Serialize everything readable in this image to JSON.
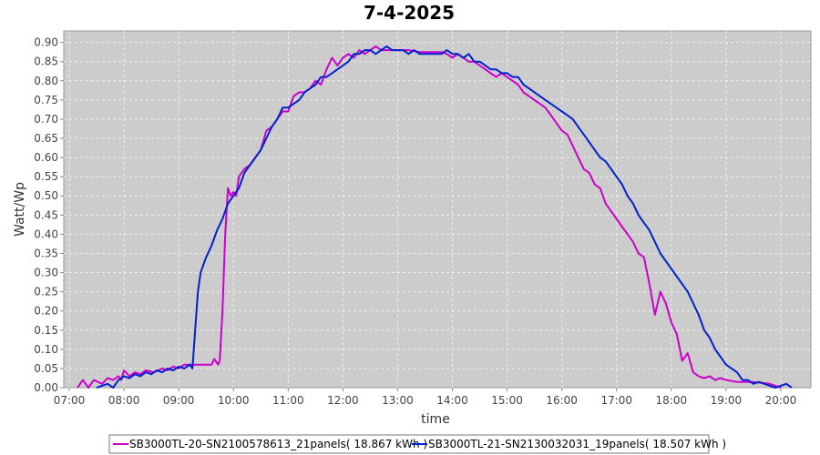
{
  "chart_data": {
    "type": "line",
    "title": "7-4-2025",
    "xlabel": "time",
    "ylabel": "Watt/Wp",
    "x_ticks": [
      "07:00",
      "08:00",
      "09:00",
      "10:00",
      "11:00",
      "12:00",
      "13:00",
      "14:00",
      "15:00",
      "16:00",
      "17:00",
      "18:00",
      "19:00",
      "20:00"
    ],
    "y_ticks": [
      "0.00",
      "0.05",
      "0.10",
      "0.15",
      "0.20",
      "0.25",
      "0.30",
      "0.35",
      "0.40",
      "0.45",
      "0.50",
      "0.55",
      "0.60",
      "0.65",
      "0.70",
      "0.75",
      "0.80",
      "0.85",
      "0.90"
    ],
    "xlim_hours": [
      6.9,
      20.55
    ],
    "ylim": [
      0,
      0.93
    ],
    "grid": true,
    "legend_position": "bottom",
    "series": [
      {
        "name": "SB3000TL-20-SN2100578613_21panels( 18.867 kWh )",
        "color": "#cc00cc",
        "points": [
          [
            7.15,
            0.0
          ],
          [
            7.25,
            0.02
          ],
          [
            7.35,
            0.0
          ],
          [
            7.45,
            0.02
          ],
          [
            7.6,
            0.01
          ],
          [
            7.7,
            0.025
          ],
          [
            7.8,
            0.02
          ],
          [
            7.9,
            0.03
          ],
          [
            7.95,
            0.02
          ],
          [
            8.0,
            0.045
          ],
          [
            8.1,
            0.03
          ],
          [
            8.2,
            0.04
          ],
          [
            8.3,
            0.035
          ],
          [
            8.4,
            0.045
          ],
          [
            8.55,
            0.04
          ],
          [
            8.7,
            0.05
          ],
          [
            8.8,
            0.045
          ],
          [
            8.9,
            0.055
          ],
          [
            9.0,
            0.05
          ],
          [
            9.1,
            0.06
          ],
          [
            9.25,
            0.06
          ],
          [
            9.4,
            0.06
          ],
          [
            9.5,
            0.06
          ],
          [
            9.55,
            0.06
          ],
          [
            9.6,
            0.06
          ],
          [
            9.65,
            0.075
          ],
          [
            9.72,
            0.06
          ],
          [
            9.75,
            0.07
          ],
          [
            9.8,
            0.2
          ],
          [
            9.85,
            0.4
          ],
          [
            9.9,
            0.52
          ],
          [
            9.95,
            0.5
          ],
          [
            10.0,
            0.51
          ],
          [
            10.05,
            0.5
          ],
          [
            10.1,
            0.55
          ],
          [
            10.2,
            0.57
          ],
          [
            10.3,
            0.58
          ],
          [
            10.4,
            0.6
          ],
          [
            10.5,
            0.62
          ],
          [
            10.6,
            0.67
          ],
          [
            10.7,
            0.68
          ],
          [
            10.8,
            0.7
          ],
          [
            10.9,
            0.72
          ],
          [
            11.0,
            0.72
          ],
          [
            11.1,
            0.76
          ],
          [
            11.2,
            0.77
          ],
          [
            11.3,
            0.77
          ],
          [
            11.4,
            0.78
          ],
          [
            11.5,
            0.8
          ],
          [
            11.6,
            0.79
          ],
          [
            11.7,
            0.83
          ],
          [
            11.8,
            0.86
          ],
          [
            11.9,
            0.84
          ],
          [
            12.0,
            0.86
          ],
          [
            12.1,
            0.87
          ],
          [
            12.2,
            0.86
          ],
          [
            12.3,
            0.88
          ],
          [
            12.4,
            0.87
          ],
          [
            12.5,
            0.88
          ],
          [
            12.6,
            0.89
          ],
          [
            12.7,
            0.88
          ],
          [
            12.8,
            0.88
          ],
          [
            13.0,
            0.88
          ],
          [
            13.2,
            0.88
          ],
          [
            13.4,
            0.875
          ],
          [
            13.6,
            0.875
          ],
          [
            13.8,
            0.875
          ],
          [
            13.9,
            0.87
          ],
          [
            14.0,
            0.86
          ],
          [
            14.1,
            0.87
          ],
          [
            14.2,
            0.86
          ],
          [
            14.3,
            0.85
          ],
          [
            14.4,
            0.85
          ],
          [
            14.5,
            0.84
          ],
          [
            14.6,
            0.83
          ],
          [
            14.7,
            0.82
          ],
          [
            14.8,
            0.81
          ],
          [
            14.9,
            0.82
          ],
          [
            15.0,
            0.81
          ],
          [
            15.1,
            0.8
          ],
          [
            15.2,
            0.79
          ],
          [
            15.3,
            0.77
          ],
          [
            15.4,
            0.76
          ],
          [
            15.5,
            0.75
          ],
          [
            15.6,
            0.74
          ],
          [
            15.7,
            0.73
          ],
          [
            15.8,
            0.71
          ],
          [
            15.9,
            0.69
          ],
          [
            16.0,
            0.67
          ],
          [
            16.1,
            0.66
          ],
          [
            16.2,
            0.63
          ],
          [
            16.3,
            0.6
          ],
          [
            16.4,
            0.57
          ],
          [
            16.5,
            0.56
          ],
          [
            16.6,
            0.53
          ],
          [
            16.7,
            0.52
          ],
          [
            16.8,
            0.48
          ],
          [
            16.9,
            0.46
          ],
          [
            17.0,
            0.44
          ],
          [
            17.1,
            0.42
          ],
          [
            17.2,
            0.4
          ],
          [
            17.3,
            0.38
          ],
          [
            17.4,
            0.35
          ],
          [
            17.5,
            0.34
          ],
          [
            17.6,
            0.27
          ],
          [
            17.7,
            0.19
          ],
          [
            17.8,
            0.25
          ],
          [
            17.9,
            0.22
          ],
          [
            18.0,
            0.17
          ],
          [
            18.1,
            0.14
          ],
          [
            18.2,
            0.07
          ],
          [
            18.3,
            0.09
          ],
          [
            18.4,
            0.04
          ],
          [
            18.5,
            0.03
          ],
          [
            18.6,
            0.025
          ],
          [
            18.7,
            0.03
          ],
          [
            18.8,
            0.02
          ],
          [
            18.9,
            0.025
          ],
          [
            19.0,
            0.02
          ],
          [
            19.2,
            0.015
          ],
          [
            19.5,
            0.015
          ],
          [
            19.8,
            0.01
          ],
          [
            20.0,
            0.0
          ]
        ]
      },
      {
        "name": "SB3000TL-21-SN2130032031_19panels( 18.507 kWh )",
        "color": "#0022cc",
        "points": [
          [
            7.5,
            0.0
          ],
          [
            7.7,
            0.01
          ],
          [
            7.8,
            0.0
          ],
          [
            7.9,
            0.02
          ],
          [
            8.0,
            0.03
          ],
          [
            8.1,
            0.025
          ],
          [
            8.2,
            0.035
          ],
          [
            8.3,
            0.03
          ],
          [
            8.4,
            0.04
          ],
          [
            8.5,
            0.035
          ],
          [
            8.6,
            0.045
          ],
          [
            8.7,
            0.04
          ],
          [
            8.8,
            0.05
          ],
          [
            8.9,
            0.045
          ],
          [
            9.0,
            0.055
          ],
          [
            9.1,
            0.05
          ],
          [
            9.2,
            0.06
          ],
          [
            9.25,
            0.05
          ],
          [
            9.3,
            0.15
          ],
          [
            9.35,
            0.25
          ],
          [
            9.4,
            0.3
          ],
          [
            9.5,
            0.34
          ],
          [
            9.6,
            0.37
          ],
          [
            9.7,
            0.41
          ],
          [
            9.8,
            0.44
          ],
          [
            9.9,
            0.48
          ],
          [
            10.0,
            0.5
          ],
          [
            10.1,
            0.52
          ],
          [
            10.2,
            0.56
          ],
          [
            10.3,
            0.58
          ],
          [
            10.4,
            0.6
          ],
          [
            10.5,
            0.62
          ],
          [
            10.6,
            0.65
          ],
          [
            10.7,
            0.68
          ],
          [
            10.8,
            0.7
          ],
          [
            10.9,
            0.73
          ],
          [
            11.0,
            0.73
          ],
          [
            11.1,
            0.74
          ],
          [
            11.2,
            0.75
          ],
          [
            11.3,
            0.77
          ],
          [
            11.4,
            0.78
          ],
          [
            11.5,
            0.79
          ],
          [
            11.6,
            0.81
          ],
          [
            11.7,
            0.81
          ],
          [
            11.8,
            0.82
          ],
          [
            11.9,
            0.83
          ],
          [
            12.0,
            0.84
          ],
          [
            12.1,
            0.85
          ],
          [
            12.2,
            0.87
          ],
          [
            12.3,
            0.87
          ],
          [
            12.4,
            0.88
          ],
          [
            12.5,
            0.88
          ],
          [
            12.6,
            0.87
          ],
          [
            12.7,
            0.88
          ],
          [
            12.8,
            0.89
          ],
          [
            12.9,
            0.88
          ],
          [
            13.0,
            0.88
          ],
          [
            13.1,
            0.88
          ],
          [
            13.2,
            0.87
          ],
          [
            13.3,
            0.88
          ],
          [
            13.4,
            0.87
          ],
          [
            13.6,
            0.87
          ],
          [
            13.8,
            0.87
          ],
          [
            13.9,
            0.88
          ],
          [
            14.0,
            0.87
          ],
          [
            14.1,
            0.87
          ],
          [
            14.2,
            0.86
          ],
          [
            14.3,
            0.87
          ],
          [
            14.4,
            0.85
          ],
          [
            14.5,
            0.85
          ],
          [
            14.6,
            0.84
          ],
          [
            14.7,
            0.83
          ],
          [
            14.8,
            0.83
          ],
          [
            14.9,
            0.82
          ],
          [
            15.0,
            0.82
          ],
          [
            15.1,
            0.81
          ],
          [
            15.2,
            0.81
          ],
          [
            15.3,
            0.79
          ],
          [
            15.4,
            0.78
          ],
          [
            15.5,
            0.77
          ],
          [
            15.6,
            0.76
          ],
          [
            15.7,
            0.75
          ],
          [
            15.8,
            0.74
          ],
          [
            15.9,
            0.73
          ],
          [
            16.0,
            0.72
          ],
          [
            16.1,
            0.71
          ],
          [
            16.2,
            0.7
          ],
          [
            16.3,
            0.68
          ],
          [
            16.4,
            0.66
          ],
          [
            16.5,
            0.64
          ],
          [
            16.6,
            0.62
          ],
          [
            16.7,
            0.6
          ],
          [
            16.8,
            0.59
          ],
          [
            16.9,
            0.57
          ],
          [
            17.0,
            0.55
          ],
          [
            17.1,
            0.53
          ],
          [
            17.2,
            0.5
          ],
          [
            17.3,
            0.48
          ],
          [
            17.4,
            0.45
          ],
          [
            17.5,
            0.43
          ],
          [
            17.6,
            0.41
          ],
          [
            17.7,
            0.38
          ],
          [
            17.8,
            0.35
          ],
          [
            17.9,
            0.33
          ],
          [
            18.0,
            0.31
          ],
          [
            18.1,
            0.29
          ],
          [
            18.2,
            0.27
          ],
          [
            18.3,
            0.25
          ],
          [
            18.4,
            0.22
          ],
          [
            18.5,
            0.19
          ],
          [
            18.6,
            0.15
          ],
          [
            18.7,
            0.13
          ],
          [
            18.8,
            0.1
          ],
          [
            18.9,
            0.08
          ],
          [
            19.0,
            0.06
          ],
          [
            19.1,
            0.05
          ],
          [
            19.2,
            0.04
          ],
          [
            19.3,
            0.02
          ],
          [
            19.4,
            0.02
          ],
          [
            19.5,
            0.01
          ],
          [
            19.6,
            0.015
          ],
          [
            19.7,
            0.01
          ],
          [
            19.8,
            0.005
          ],
          [
            19.9,
            0.0
          ],
          [
            20.1,
            0.01
          ],
          [
            20.2,
            0.0
          ]
        ]
      }
    ]
  }
}
